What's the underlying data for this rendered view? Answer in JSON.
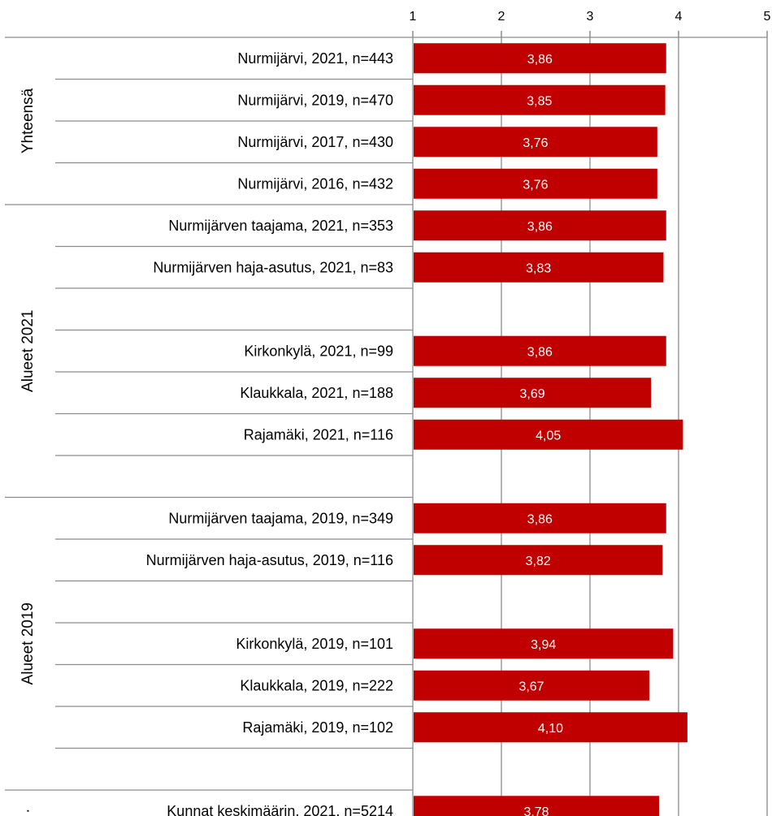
{
  "chart_data": {
    "type": "bar",
    "orientation": "horizontal",
    "xlim": [
      1,
      5
    ],
    "xticks": [
      "1",
      "2",
      "3",
      "4",
      "5"
    ],
    "bar_color": "#c00000",
    "grid": true,
    "groups": [
      {
        "name": "Yhteensä",
        "rows": [
          {
            "label": "Nurmijärvi, 2021, n=443",
            "value": 3.86,
            "value_label": "3,86"
          },
          {
            "label": "Nurmijärvi, 2019, n=470",
            "value": 3.85,
            "value_label": "3,85"
          },
          {
            "label": "Nurmijärvi, 2017, n=430",
            "value": 3.76,
            "value_label": "3,76"
          },
          {
            "label": "Nurmijärvi, 2016, n=432",
            "value": 3.76,
            "value_label": "3,76"
          }
        ]
      },
      {
        "name": "Alueet 2021",
        "rows": [
          {
            "label": "Nurmijärven taajama, 2021, n=353",
            "value": 3.86,
            "value_label": "3,86"
          },
          {
            "label": "Nurmijärven haja-asutus, 2021, n=83",
            "value": 3.83,
            "value_label": "3,83"
          },
          {
            "label": "",
            "value": null,
            "value_label": ""
          },
          {
            "label": "Kirkonkylä, 2021, n=99",
            "value": 3.86,
            "value_label": "3,86"
          },
          {
            "label": "Klaukkala, 2021, n=188",
            "value": 3.69,
            "value_label": "3,69"
          },
          {
            "label": "Rajamäki, 2021, n=116",
            "value": 4.05,
            "value_label": "4,05"
          },
          {
            "label": "",
            "value": null,
            "value_label": ""
          }
        ]
      },
      {
        "name": "Alueet 2019",
        "rows": [
          {
            "label": "Nurmijärven taajama, 2019, n=349",
            "value": 3.86,
            "value_label": "3,86"
          },
          {
            "label": "Nurmijärven haja-asutus, 2019, n=116",
            "value": 3.82,
            "value_label": "3,82"
          },
          {
            "label": "",
            "value": null,
            "value_label": ""
          },
          {
            "label": "Kirkonkylä, 2019, n=101",
            "value": 3.94,
            "value_label": "3,94"
          },
          {
            "label": "Klaukkala, 2019, n=222",
            "value": 3.67,
            "value_label": "3,67"
          },
          {
            "label": "Rajamäki, 2019, n=102",
            "value": 4.1,
            "value_label": "4,10"
          },
          {
            "label": "",
            "value": null,
            "value_label": ""
          }
        ]
      },
      {
        "name": "·",
        "rows": [
          {
            "label": "Kunnat keskimäärin, 2021, n=5214",
            "value": 3.78,
            "value_label": "3,78"
          }
        ]
      }
    ]
  }
}
